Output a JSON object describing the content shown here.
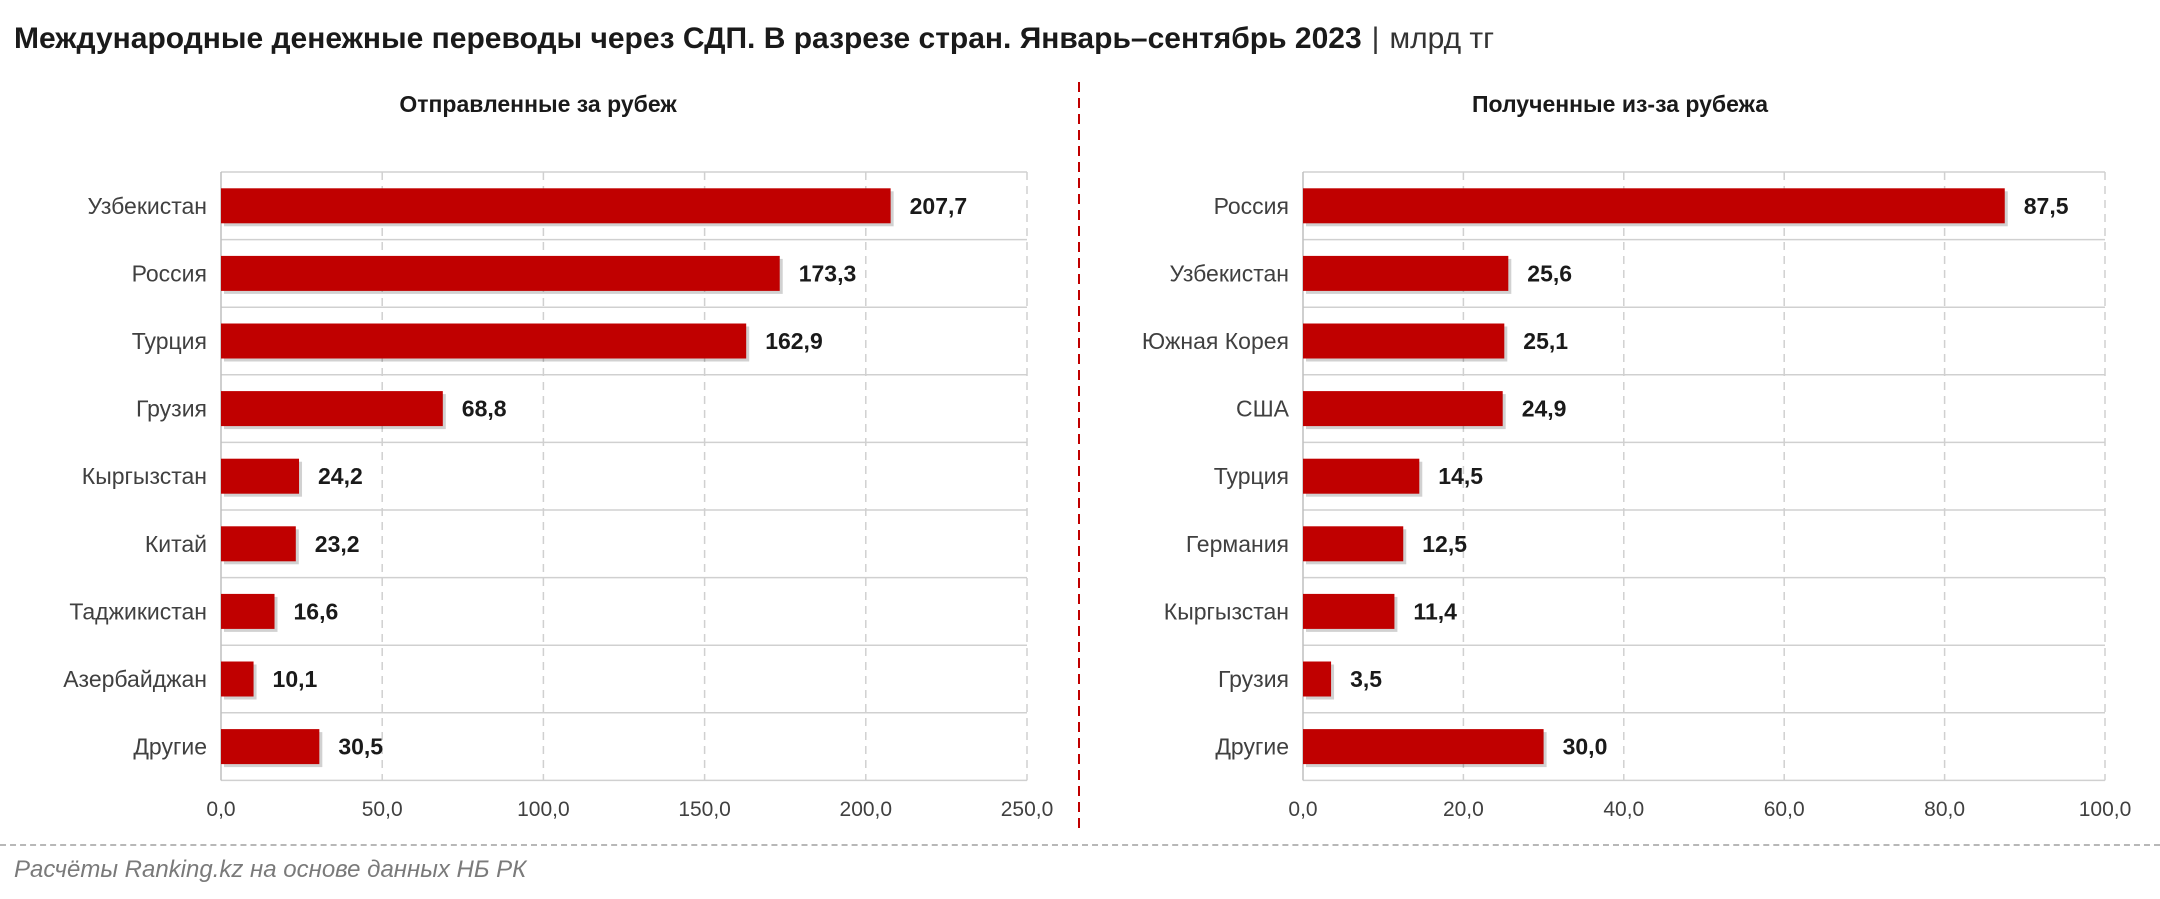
{
  "title": "Международные денежные переводы через СДП. В разрезе стран. Январь–сентябрь 2023",
  "title_separator": "|",
  "unit": "млрд тг",
  "source": "Расчёты Ranking.kz на основе данных НБ РК",
  "colors": {
    "bar": "#c00000",
    "divider": "#c00000",
    "grid": "#d0d0d0"
  },
  "chart_data": [
    {
      "type": "bar",
      "orientation": "horizontal",
      "title": "Отправленные за рубеж",
      "categories": [
        "Узбекистан",
        "Россия",
        "Турция",
        "Грузия",
        "Кыргызстан",
        "Китай",
        "Таджикистан",
        "Азербайджан",
        "Другие"
      ],
      "values": [
        207.7,
        173.3,
        162.9,
        68.8,
        24.2,
        23.2,
        16.6,
        10.1,
        30.5
      ],
      "value_labels": [
        "207,7",
        "173,3",
        "162,9",
        "68,8",
        "24,2",
        "23,2",
        "16,6",
        "10,1",
        "30,5"
      ],
      "xlim": [
        0,
        250
      ],
      "x_ticks": [
        0,
        50,
        100,
        150,
        200,
        250
      ],
      "x_tick_labels": [
        "0,0",
        "50,0",
        "100,0",
        "150,0",
        "200,0",
        "250,0"
      ],
      "grid": true
    },
    {
      "type": "bar",
      "orientation": "horizontal",
      "title": "Полученные из-за рубежа",
      "categories": [
        "Россия",
        "Узбекистан",
        "Южная Корея",
        "США",
        "Турция",
        "Германия",
        "Кыргызстан",
        "Грузия",
        "Другие"
      ],
      "values": [
        87.5,
        25.6,
        25.1,
        24.9,
        14.5,
        12.5,
        11.4,
        3.5,
        30.0
      ],
      "value_labels": [
        "87,5",
        "25,6",
        "25,1",
        "24,9",
        "14,5",
        "12,5",
        "11,4",
        "3,5",
        "30,0"
      ],
      "xlim": [
        0,
        100
      ],
      "x_ticks": [
        0,
        20,
        40,
        60,
        80,
        100
      ],
      "x_tick_labels": [
        "0,0",
        "20,0",
        "40,0",
        "60,0",
        "80,0",
        "100,0"
      ],
      "grid": true
    }
  ]
}
